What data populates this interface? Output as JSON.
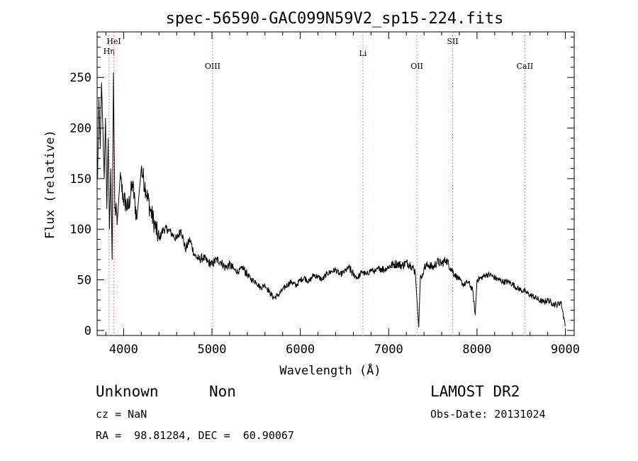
{
  "chart_data": {
    "type": "line",
    "title": "spec-56590-GAC099N59V2_sp15-224.fits",
    "xlabel": "Wavelength (Å)",
    "ylabel": "Flux (relative)",
    "xlim": [
      3700,
      9100
    ],
    "ylim": [
      -5,
      295
    ],
    "xticks": [
      4000,
      5000,
      6000,
      7000,
      8000,
      9000
    ],
    "yticks": [
      0,
      50,
      100,
      150,
      200,
      250
    ],
    "grid": false,
    "series": [
      {
        "x": [
          3705,
          3720,
          3735,
          3750,
          3765,
          3780,
          3795,
          3810,
          3825,
          3840,
          3855,
          3870,
          3885,
          3900,
          3930,
          3960,
          4000,
          4050,
          4100,
          4150,
          4200,
          4250,
          4300,
          4350,
          4400,
          4450,
          4500,
          4550,
          4600,
          4650,
          4700,
          4750,
          4800,
          4850,
          4900,
          4950,
          5000,
          5050,
          5100,
          5150,
          5200,
          5250,
          5300,
          5350,
          5400,
          5450,
          5500,
          5550,
          5600,
          5650,
          5700,
          5750,
          5800,
          5850,
          5900,
          5950,
          6000,
          6050,
          6100,
          6150,
          6200,
          6250,
          6300,
          6350,
          6400,
          6450,
          6500,
          6550,
          6600,
          6650,
          6700,
          6750,
          6800,
          6850,
          6900,
          6950,
          7000,
          7050,
          7100,
          7150,
          7200,
          7250,
          7300,
          7340,
          7360,
          7380,
          7400,
          7450,
          7500,
          7550,
          7600,
          7650,
          7700,
          7750,
          7800,
          7850,
          7900,
          7950,
          7980,
          8000,
          8050,
          8100,
          8150,
          8200,
          8250,
          8300,
          8350,
          8400,
          8450,
          8500,
          8550,
          8600,
          8650,
          8700,
          8750,
          8800,
          8850,
          8900,
          8950,
          9000
        ],
        "y": [
          150,
          230,
          180,
          245,
          200,
          150,
          210,
          120,
          190,
          100,
          160,
          70,
          255,
          120,
          110,
          150,
          130,
          120,
          145,
          110,
          160,
          140,
          120,
          105,
          90,
          100,
          100,
          95,
          90,
          100,
          80,
          90,
          75,
          70,
          72,
          68,
          65,
          70,
          68,
          62,
          65,
          60,
          58,
          62,
          55,
          50,
          48,
          42,
          45,
          38,
          32,
          35,
          40,
          45,
          48,
          44,
          50,
          52,
          48,
          55,
          53,
          50,
          56,
          58,
          60,
          55,
          58,
          62,
          55,
          52,
          58,
          55,
          60,
          58,
          62,
          60,
          63,
          65,
          66,
          64,
          67,
          65,
          58,
          3,
          55,
          52,
          62,
          65,
          62,
          68,
          66,
          70,
          62,
          55,
          50,
          45,
          48,
          40,
          15,
          50,
          52,
          55,
          55,
          52,
          50,
          48,
          48,
          46,
          42,
          40,
          38,
          35,
          33,
          30,
          28,
          30,
          27,
          25,
          28,
          5
        ],
        "color": "#000000"
      }
    ],
    "lines": [
      {
        "label": "Hη",
        "x": 3835
      },
      {
        "label": "HeI",
        "x": 3889
      },
      {
        "label": "OIII",
        "x": 5007
      },
      {
        "label": "Li",
        "x": 6708
      },
      {
        "label": "OII",
        "x": 7320
      },
      {
        "label": "SII",
        "x": 7725
      },
      {
        "label": "CaII",
        "x": 8542
      }
    ],
    "line_color": "#e06060"
  },
  "info": {
    "class": "Unknown",
    "subclass": "Non",
    "survey": "LAMOST DR2",
    "cz": "cz = NaN",
    "obs_date": "Obs-Date: 20131024",
    "coords": "RA =  98.81284, DEC =  60.90067"
  }
}
